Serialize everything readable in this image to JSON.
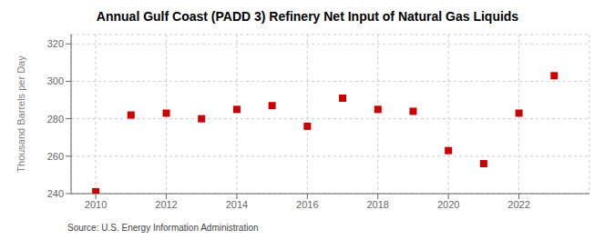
{
  "chart_data": {
    "type": "scatter",
    "title": "Annual Gulf Coast (PADD 3) Refinery Net Input of Natural Gas Liquids",
    "ylabel": "Thousand Barrels per Day",
    "annotations": [
      "Source: U.S. Energy Information Administration"
    ],
    "x": [
      2010,
      2011,
      2012,
      2013,
      2014,
      2015,
      2016,
      2017,
      2018,
      2019,
      2020,
      2021,
      2022,
      2023
    ],
    "values": [
      241,
      282,
      283,
      280,
      285,
      287,
      276,
      291,
      285,
      284,
      263,
      256,
      283,
      303
    ],
    "color": "#cc0000",
    "marker": "square",
    "ylim": [
      240,
      325
    ],
    "yticks": [
      240,
      260,
      280,
      300,
      320
    ],
    "xlim": [
      2009.3,
      2024.0
    ],
    "xticks": [
      2010,
      2012,
      2014,
      2016,
      2018,
      2020,
      2022
    ],
    "grid": true
  }
}
